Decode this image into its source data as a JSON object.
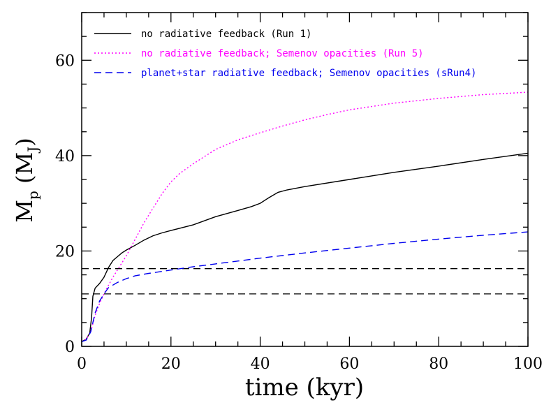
{
  "chart_data": {
    "type": "line",
    "xlabel": "time (kyr)",
    "ylabel_main": "M",
    "ylabel_sub": "p",
    "ylabel_unit_main": "M",
    "ylabel_unit_sub": "J",
    "xlim": [
      0,
      100
    ],
    "ylim": [
      0,
      70
    ],
    "xticks_major": [
      0,
      20,
      40,
      60,
      80,
      100
    ],
    "yticks_major": [
      0,
      20,
      40,
      60
    ],
    "x_minor_step": 5,
    "y_minor_step": 5,
    "grid": false,
    "legend_position": "top-left",
    "series": [
      {
        "name": "no radiative feedback (Run 1)",
        "color": "#000000",
        "style": "solid",
        "points": [
          [
            0,
            1
          ],
          [
            1,
            1.5
          ],
          [
            1.8,
            2.8
          ],
          [
            2.2,
            6
          ],
          [
            2.5,
            10.5
          ],
          [
            3,
            12.2
          ],
          [
            4,
            13.2
          ],
          [
            5,
            14.5
          ],
          [
            6,
            16.5
          ],
          [
            7,
            18
          ],
          [
            8,
            18.8
          ],
          [
            9,
            19.6
          ],
          [
            10,
            20.2
          ],
          [
            12,
            21.2
          ],
          [
            14,
            22.3
          ],
          [
            16,
            23.2
          ],
          [
            18,
            23.8
          ],
          [
            20,
            24.3
          ],
          [
            25,
            25.5
          ],
          [
            30,
            27.2
          ],
          [
            35,
            28.5
          ],
          [
            38,
            29.3
          ],
          [
            40,
            30
          ],
          [
            42,
            31.2
          ],
          [
            44,
            32.3
          ],
          [
            46,
            32.8
          ],
          [
            50,
            33.5
          ],
          [
            60,
            35
          ],
          [
            70,
            36.5
          ],
          [
            80,
            37.8
          ],
          [
            90,
            39.2
          ],
          [
            100,
            40.5
          ]
        ]
      },
      {
        "name": "no radiative feedback; Semenov opacities (Run 5)",
        "color": "#ff00ff",
        "style": "dotted",
        "points": [
          [
            0,
            1
          ],
          [
            1,
            1.5
          ],
          [
            2,
            3
          ],
          [
            3,
            6.5
          ],
          [
            4,
            9
          ],
          [
            5,
            11
          ],
          [
            6,
            12.8
          ],
          [
            7,
            14.5
          ],
          [
            8,
            16
          ],
          [
            9,
            17.5
          ],
          [
            10,
            19
          ],
          [
            12,
            22.5
          ],
          [
            14,
            26
          ],
          [
            16,
            29
          ],
          [
            18,
            32
          ],
          [
            20,
            34.5
          ],
          [
            22,
            36.3
          ],
          [
            25,
            38.3
          ],
          [
            30,
            41.3
          ],
          [
            35,
            43.3
          ],
          [
            40,
            44.8
          ],
          [
            45,
            46.2
          ],
          [
            50,
            47.5
          ],
          [
            55,
            48.6
          ],
          [
            60,
            49.6
          ],
          [
            70,
            51
          ],
          [
            80,
            52
          ],
          [
            90,
            52.8
          ],
          [
            100,
            53.3
          ]
        ]
      },
      {
        "name": "planet+star radiative feedback; Semenov opacities (sRun4)",
        "color": "#0000ee",
        "style": "dashed",
        "points": [
          [
            0,
            1
          ],
          [
            1,
            1.3
          ],
          [
            2,
            3
          ],
          [
            3,
            7
          ],
          [
            4,
            9.5
          ],
          [
            5,
            11
          ],
          [
            6,
            12.3
          ],
          [
            8,
            13.4
          ],
          [
            10,
            14.2
          ],
          [
            12,
            14.8
          ],
          [
            15,
            15.3
          ],
          [
            20,
            16
          ],
          [
            25,
            16.7
          ],
          [
            30,
            17.3
          ],
          [
            40,
            18.5
          ],
          [
            50,
            19.6
          ],
          [
            60,
            20.6
          ],
          [
            70,
            21.6
          ],
          [
            80,
            22.5
          ],
          [
            90,
            23.3
          ],
          [
            100,
            24
          ]
        ]
      }
    ],
    "hlines": [
      {
        "y": 16.3,
        "color": "#000000",
        "style": "dashed"
      },
      {
        "y": 11,
        "color": "#000000",
        "style": "dashed"
      }
    ]
  }
}
